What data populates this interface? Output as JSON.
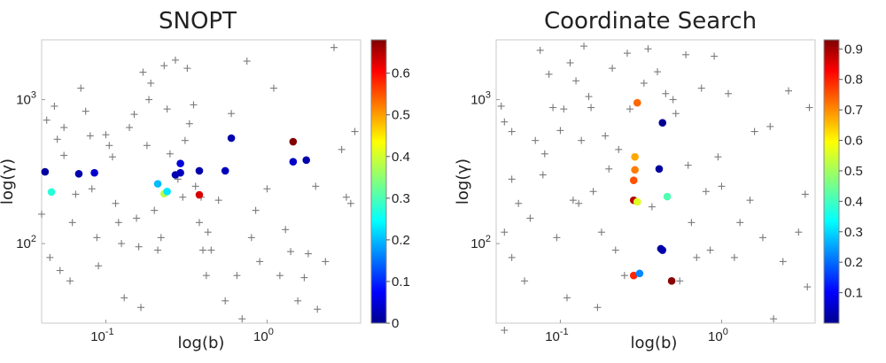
{
  "chart_data": [
    {
      "type": "scatter",
      "title": "SNOPT",
      "xlabel": "log(b)",
      "ylabel": "log(γ)",
      "xscale": "log",
      "yscale": "log",
      "xlim": [
        0.04,
        3.8
      ],
      "ylim": [
        28,
        2600
      ],
      "xtick_labels": [
        {
          "value": 0.1,
          "base": "10",
          "exp": "-1"
        },
        {
          "value": 1,
          "base": "10",
          "exp": "0"
        }
      ],
      "ytick_labels": [
        {
          "value": 100,
          "base": "10",
          "exp": "2"
        },
        {
          "value": 1000,
          "base": "10",
          "exp": "3"
        }
      ],
      "colorbar": {
        "range": [
          0,
          0.68
        ],
        "ticks": [
          "0",
          "0.1",
          "0.2",
          "0.3",
          "0.4",
          "0.5",
          "0.6"
        ],
        "tick_values": [
          0,
          0.1,
          0.2,
          0.3,
          0.4,
          0.5,
          0.6
        ],
        "colormap": "jet"
      },
      "colored_points": [
        {
          "x": 0.042,
          "y": 315,
          "c": 0.02
        },
        {
          "x": 0.046,
          "y": 228,
          "c": 0.28
        },
        {
          "x": 0.068,
          "y": 305,
          "c": 0.03
        },
        {
          "x": 0.085,
          "y": 310,
          "c": 0.05
        },
        {
          "x": 0.21,
          "y": 260,
          "c": 0.21
        },
        {
          "x": 0.23,
          "y": 222,
          "c": 0.38
        },
        {
          "x": 0.24,
          "y": 230,
          "c": 0.24
        },
        {
          "x": 0.27,
          "y": 300,
          "c": 0.03
        },
        {
          "x": 0.29,
          "y": 310,
          "c": 0.04
        },
        {
          "x": 0.29,
          "y": 360,
          "c": 0.06
        },
        {
          "x": 0.38,
          "y": 218,
          "c": 0.62
        },
        {
          "x": 0.38,
          "y": 320,
          "c": 0.03
        },
        {
          "x": 0.55,
          "y": 320,
          "c": 0.04
        },
        {
          "x": 0.6,
          "y": 540,
          "c": 0.03
        },
        {
          "x": 1.45,
          "y": 510,
          "c": 0.68
        },
        {
          "x": 1.45,
          "y": 370,
          "c": 0.05
        },
        {
          "x": 1.75,
          "y": 380,
          "c": 0.03
        }
      ],
      "trial_points": [
        [
          0.043,
          720
        ],
        [
          0.048,
          900
        ],
        [
          0.055,
          640
        ],
        [
          0.05,
          530
        ],
        [
          0.055,
          410
        ],
        [
          0.04,
          160
        ],
        [
          0.045,
          80
        ],
        [
          0.052,
          65
        ],
        [
          0.06,
          55
        ],
        [
          0.062,
          140
        ],
        [
          0.065,
          220
        ],
        [
          0.07,
          1200
        ],
        [
          0.075,
          830
        ],
        [
          0.08,
          560
        ],
        [
          0.082,
          240
        ],
        [
          0.088,
          110
        ],
        [
          0.09,
          70
        ],
        [
          0.1,
          570
        ],
        [
          0.105,
          480
        ],
        [
          0.11,
          400
        ],
        [
          0.115,
          190
        ],
        [
          0.12,
          140
        ],
        [
          0.125,
          100
        ],
        [
          0.13,
          42
        ],
        [
          0.14,
          640
        ],
        [
          0.15,
          790
        ],
        [
          0.155,
          150
        ],
        [
          0.16,
          95
        ],
        [
          0.165,
          36
        ],
        [
          0.17,
          1550
        ],
        [
          0.18,
          480
        ],
        [
          0.185,
          1000
        ],
        [
          0.19,
          1300
        ],
        [
          0.2,
          170
        ],
        [
          0.21,
          90
        ],
        [
          0.22,
          110
        ],
        [
          0.23,
          1720
        ],
        [
          0.24,
          860
        ],
        [
          0.25,
          420
        ],
        [
          0.27,
          1880
        ],
        [
          0.28,
          280
        ],
        [
          0.3,
          210
        ],
        [
          0.31,
          520
        ],
        [
          0.32,
          1650
        ],
        [
          0.33,
          680
        ],
        [
          0.35,
          920
        ],
        [
          0.36,
          250
        ],
        [
          0.38,
          140
        ],
        [
          0.39,
          210
        ],
        [
          0.4,
          90
        ],
        [
          0.42,
          60
        ],
        [
          0.43,
          120
        ],
        [
          0.45,
          90
        ],
        [
          0.5,
          200
        ],
        [
          0.55,
          40
        ],
        [
          0.6,
          800
        ],
        [
          0.65,
          60
        ],
        [
          0.7,
          30
        ],
        [
          0.75,
          1850
        ],
        [
          0.8,
          110
        ],
        [
          0.85,
          170
        ],
        [
          0.9,
          75
        ],
        [
          1.0,
          240
        ],
        [
          1.1,
          1200
        ],
        [
          1.2,
          60
        ],
        [
          1.3,
          125
        ],
        [
          1.4,
          88
        ],
        [
          1.55,
          40
        ],
        [
          1.7,
          58
        ],
        [
          1.8,
          85
        ],
        [
          2.0,
          250
        ],
        [
          2.05,
          35
        ],
        [
          2.3,
          75
        ],
        [
          2.6,
          2300
        ],
        [
          2.9,
          450
        ],
        [
          3.1,
          210
        ],
        [
          3.3,
          190
        ],
        [
          3.5,
          600
        ]
      ]
    },
    {
      "type": "scatter",
      "title": "Coordinate Search",
      "xlabel": "log(b)",
      "ylabel": "log(γ)",
      "xscale": "log",
      "yscale": "log",
      "xlim": [
        0.04,
        3.8
      ],
      "ylim": [
        28,
        2600
      ],
      "xtick_labels": [
        {
          "value": 0.1,
          "base": "10",
          "exp": "-1"
        },
        {
          "value": 1,
          "base": "10",
          "exp": "0"
        }
      ],
      "ytick_labels": [
        {
          "value": 100,
          "base": "10",
          "exp": "2"
        },
        {
          "value": 1000,
          "base": "10",
          "exp": "3"
        }
      ],
      "colorbar": {
        "range": [
          0,
          0.93
        ],
        "ticks": [
          "0.1",
          "0.2",
          "0.3",
          "0.4",
          "0.5",
          "0.6",
          "0.7",
          "0.8",
          "0.9"
        ],
        "tick_values": [
          0.1,
          0.2,
          0.3,
          0.4,
          0.5,
          0.6,
          0.7,
          0.8,
          0.9
        ],
        "colormap": "jet"
      },
      "colored_points": [
        {
          "x": 0.3,
          "y": 950,
          "c": 0.72
        },
        {
          "x": 0.43,
          "y": 690,
          "c": 0.02
        },
        {
          "x": 0.29,
          "y": 400,
          "c": 0.66
        },
        {
          "x": 0.29,
          "y": 325,
          "c": 0.7
        },
        {
          "x": 0.41,
          "y": 330,
          "c": 0.03
        },
        {
          "x": 0.285,
          "y": 275,
          "c": 0.74
        },
        {
          "x": 0.285,
          "y": 200,
          "c": 0.88
        },
        {
          "x": 0.3,
          "y": 195,
          "c": 0.55
        },
        {
          "x": 0.46,
          "y": 212,
          "c": 0.42
        },
        {
          "x": 0.42,
          "y": 92,
          "c": 0.03
        },
        {
          "x": 0.43,
          "y": 90,
          "c": 0.04
        },
        {
          "x": 0.285,
          "y": 60,
          "c": 0.78
        },
        {
          "x": 0.31,
          "y": 62,
          "c": 0.24
        },
        {
          "x": 0.49,
          "y": 55,
          "c": 0.92
        }
      ],
      "trial_points": [
        [
          0.043,
          900
        ],
        [
          0.045,
          700
        ],
        [
          0.05,
          600
        ],
        [
          0.05,
          280
        ],
        [
          0.055,
          190
        ],
        [
          0.045,
          120
        ],
        [
          0.05,
          80
        ],
        [
          0.045,
          25
        ],
        [
          0.06,
          55
        ],
        [
          0.065,
          150
        ],
        [
          0.07,
          520
        ],
        [
          0.075,
          2200
        ],
        [
          0.078,
          300
        ],
        [
          0.08,
          420
        ],
        [
          0.085,
          1500
        ],
        [
          0.09,
          880
        ],
        [
          0.095,
          110
        ],
        [
          0.1,
          610
        ],
        [
          0.105,
          860
        ],
        [
          0.11,
          42
        ],
        [
          0.115,
          1800
        ],
        [
          0.12,
          200
        ],
        [
          0.125,
          1350
        ],
        [
          0.13,
          190
        ],
        [
          0.135,
          520
        ],
        [
          0.14,
          2350
        ],
        [
          0.15,
          1050
        ],
        [
          0.155,
          880
        ],
        [
          0.16,
          230
        ],
        [
          0.17,
          36
        ],
        [
          0.18,
          120
        ],
        [
          0.19,
          560
        ],
        [
          0.2,
          330
        ],
        [
          0.21,
          1650
        ],
        [
          0.22,
          90
        ],
        [
          0.23,
          450
        ],
        [
          0.25,
          60
        ],
        [
          0.26,
          2100
        ],
        [
          0.27,
          860
        ],
        [
          0.33,
          1300
        ],
        [
          0.35,
          2250
        ],
        [
          0.37,
          180
        ],
        [
          0.4,
          1560
        ],
        [
          0.45,
          1100
        ],
        [
          0.5,
          1000
        ],
        [
          0.52,
          800
        ],
        [
          0.55,
          55
        ],
        [
          0.6,
          2050
        ],
        [
          0.62,
          350
        ],
        [
          0.65,
          140
        ],
        [
          0.7,
          80
        ],
        [
          0.75,
          1200
        ],
        [
          0.8,
          230
        ],
        [
          0.85,
          90
        ],
        [
          0.9,
          2000
        ],
        [
          0.95,
          400
        ],
        [
          1.0,
          250
        ],
        [
          1.1,
          1100
        ],
        [
          1.2,
          80
        ],
        [
          1.3,
          140
        ],
        [
          1.5,
          200
        ],
        [
          1.6,
          600
        ],
        [
          1.8,
          110
        ],
        [
          2.0,
          650
        ],
        [
          2.1,
          30
        ],
        [
          2.4,
          75
        ],
        [
          2.6,
          1150
        ],
        [
          3.0,
          120
        ],
        [
          3.3,
          220
        ],
        [
          3.5,
          880
        ],
        [
          3.4,
          50
        ]
      ]
    }
  ]
}
